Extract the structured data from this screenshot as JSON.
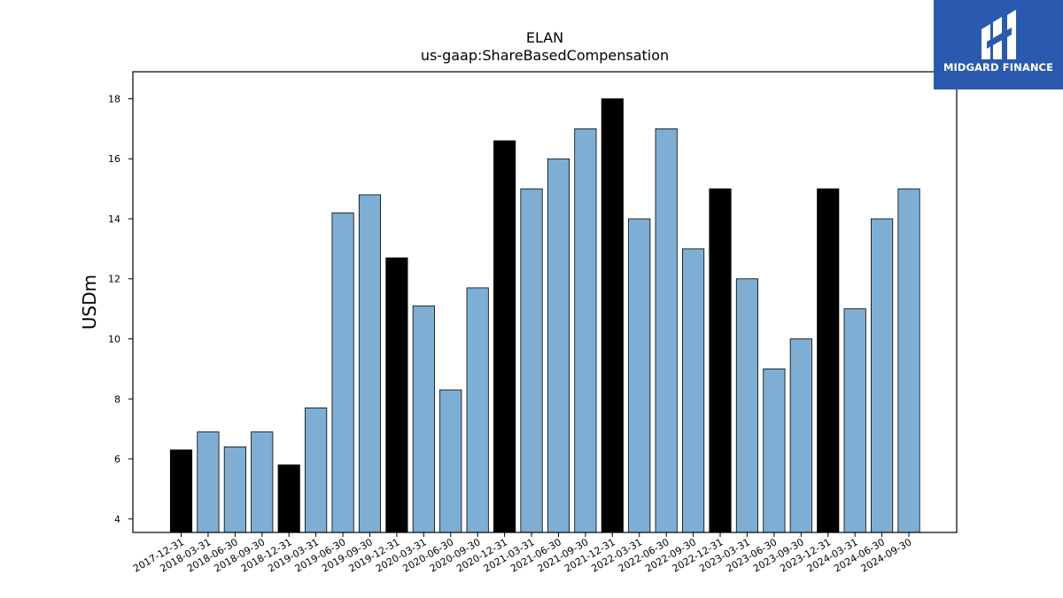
{
  "brand": {
    "name": "MIDGARD FINANCE",
    "background": "#2a5ab0",
    "mark": "midgard-logo-icon"
  },
  "colors": {
    "highlight": "#000000",
    "default": "#7eaed3",
    "edge": "#000000"
  },
  "chart_data": {
    "type": "bar",
    "title": "ELAN",
    "subtitle": "us-gaap:ShareBasedCompensation",
    "xlabel": "",
    "ylabel": "USDm",
    "ylim": [
      3.55,
      18.9
    ],
    "yticks": [
      4,
      6,
      8,
      10,
      12,
      14,
      16,
      18
    ],
    "grid": false,
    "legend": "none",
    "categories": [
      "2017-12-31",
      "2018-03-31",
      "2018-06-30",
      "2018-09-30",
      "2018-12-31",
      "2019-03-31",
      "2019-06-30",
      "2019-09-30",
      "2019-12-31",
      "2020-03-31",
      "2020-06-30",
      "2020-09-30",
      "2020-12-31",
      "2021-03-31",
      "2021-06-30",
      "2021-09-30",
      "2021-12-31",
      "2022-03-31",
      "2022-06-30",
      "2022-09-30",
      "2022-12-31",
      "2023-03-31",
      "2023-06-30",
      "2023-09-30",
      "2023-12-31",
      "2024-03-31",
      "2024-06-30",
      "2024-09-30"
    ],
    "values": [
      6.3,
      6.9,
      6.4,
      6.9,
      5.8,
      7.7,
      14.2,
      14.8,
      12.7,
      11.1,
      8.3,
      11.7,
      16.6,
      15.0,
      16.0,
      17.0,
      18.0,
      14.0,
      17.0,
      13.0,
      15.0,
      12.0,
      9.0,
      10.0,
      15.0,
      11.0,
      14.0,
      15.0
    ],
    "highlight": [
      true,
      false,
      false,
      false,
      true,
      false,
      false,
      false,
      true,
      false,
      false,
      false,
      true,
      false,
      false,
      false,
      true,
      false,
      false,
      false,
      true,
      false,
      false,
      false,
      true,
      false,
      false,
      false
    ]
  }
}
